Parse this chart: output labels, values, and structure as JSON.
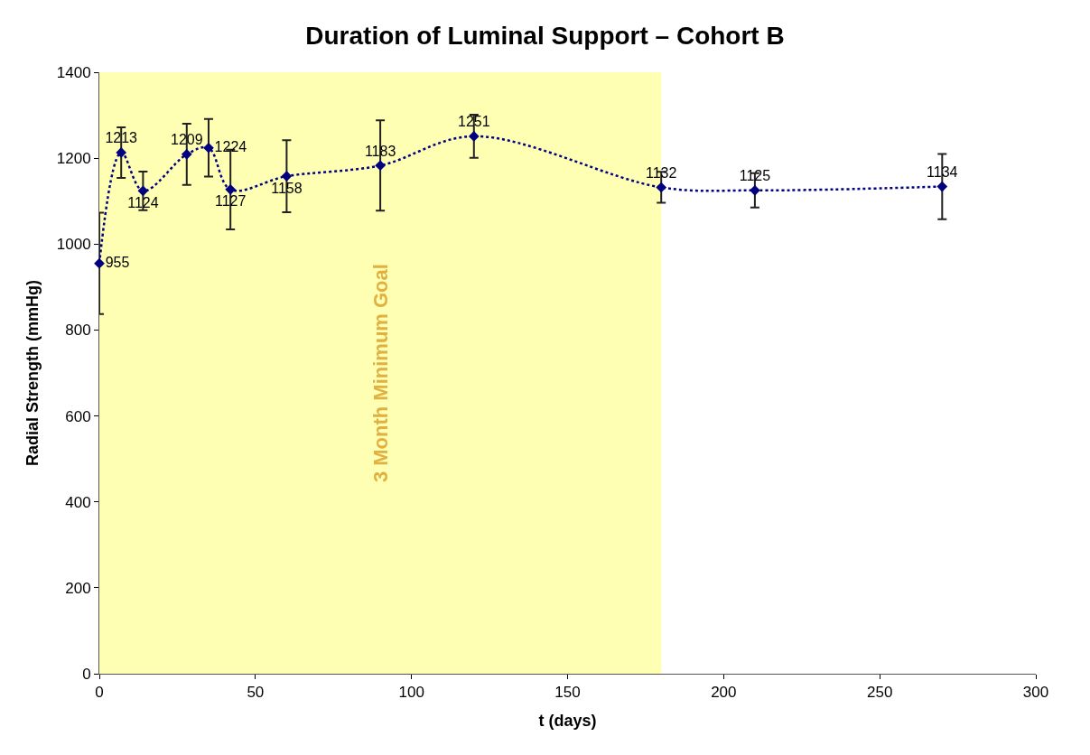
{
  "chart_data": {
    "type": "line",
    "title": "Duration of Luminal Support – Cohort B",
    "xlabel": "t (days)",
    "ylabel": "Radial Strength (mmHg)",
    "x": [
      0,
      7,
      14,
      28,
      35,
      42,
      60,
      90,
      120,
      180,
      210,
      270
    ],
    "series": [
      {
        "color": "#000080",
        "values": [
          955,
          1213,
          1124,
          1209,
          1224,
          1127,
          1158,
          1183,
          1251,
          1132,
          1125,
          1134
        ],
        "errors": [
          118,
          59,
          45,
          71,
          67,
          93,
          84,
          105,
          50,
          36,
          40,
          76
        ]
      }
    ],
    "data_labels": true,
    "marker": "diamond",
    "line_style": "dotted",
    "grid": false,
    "legend": false,
    "xlim": [
      0,
      300
    ],
    "xticks": [
      0,
      50,
      100,
      150,
      200,
      250,
      300
    ],
    "ylim": [
      0,
      1400
    ],
    "yticks": [
      0,
      200,
      400,
      600,
      800,
      1000,
      1200,
      1400
    ],
    "bands": [
      {
        "axis": "x",
        "from": 0,
        "to": 180,
        "label": "3 Month Minimum Goal",
        "color": "#ffff80"
      }
    ]
  }
}
